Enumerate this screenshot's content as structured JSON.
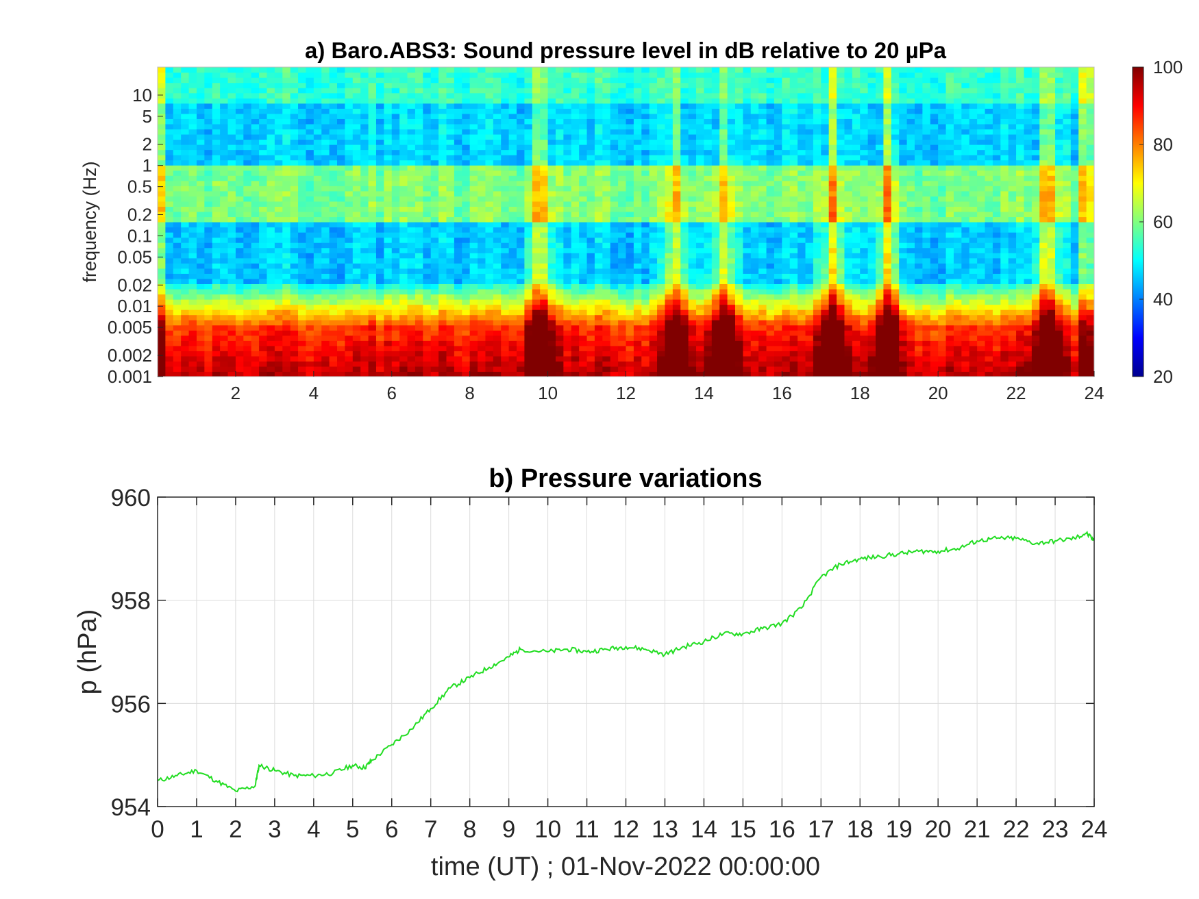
{
  "chart_data": [
    {
      "type": "heatmap",
      "title": "a) Baro.ABS3: Sound pressure level in dB relative to 20 µPa",
      "xlabel": "",
      "ylabel": "frequency (Hz)",
      "x_ticks": [
        "2",
        "4",
        "6",
        "8",
        "10",
        "12",
        "14",
        "16",
        "18",
        "20",
        "22",
        "24"
      ],
      "y_ticks": [
        "10",
        "5",
        "2",
        "1",
        "0.5",
        "0.2",
        "0.1",
        "0.05",
        "0.02",
        "0.01",
        "0.005",
        "0.002",
        "0.001"
      ],
      "xlim": [
        0,
        24
      ],
      "ylim": [
        0.001,
        25
      ],
      "yscale": "log",
      "colorbar": {
        "ticks": [
          "20",
          "40",
          "60",
          "80",
          "100"
        ],
        "range": [
          20,
          100
        ],
        "colormap": "jet"
      },
      "peak_events_hours": [
        9.8,
        13.3,
        14.5,
        17.3,
        18.7,
        22.8
      ]
    },
    {
      "type": "line",
      "title": "b) Pressure variations",
      "xlabel": "time (UT) ; 01-Nov-2022 00:00:00",
      "ylabel": "p (hPa)",
      "x_ticks": [
        "0",
        "1",
        "2",
        "3",
        "4",
        "5",
        "6",
        "7",
        "8",
        "9",
        "10",
        "11",
        "12",
        "13",
        "14",
        "15",
        "16",
        "17",
        "18",
        "19",
        "20",
        "21",
        "22",
        "23",
        "24"
      ],
      "y_ticks": [
        "954",
        "956",
        "958",
        "960"
      ],
      "xlim": [
        0,
        24
      ],
      "ylim": [
        954,
        960
      ],
      "grid": true,
      "line_color": "#22dd22",
      "series": [
        {
          "x": [
            0,
            0.5,
            1,
            1.5,
            2,
            2.5,
            2.6,
            3,
            3.5,
            4,
            4.5,
            5,
            5.3,
            5.5,
            6,
            6.5,
            7,
            7.5,
            8,
            8.5,
            9,
            9.3,
            10,
            10.5,
            11,
            11.5,
            12,
            12.5,
            13,
            13.5,
            14,
            14.5,
            15,
            15.5,
            16,
            16.5,
            17,
            17.5,
            18,
            18.5,
            19,
            19.5,
            20,
            20.5,
            21,
            21.5,
            22,
            22.5,
            23,
            23.5,
            23.8,
            24
          ],
          "y": [
            954.5,
            954.6,
            954.7,
            954.5,
            954.3,
            954.4,
            954.8,
            954.7,
            954.6,
            954.6,
            954.65,
            954.8,
            954.75,
            954.9,
            955.2,
            955.5,
            955.9,
            956.3,
            956.5,
            956.7,
            956.9,
            957.05,
            957.0,
            957.05,
            957.0,
            957.05,
            957.1,
            957.05,
            956.95,
            957.1,
            957.2,
            957.35,
            957.35,
            957.45,
            957.55,
            957.85,
            958.45,
            958.7,
            958.8,
            958.85,
            958.9,
            958.95,
            958.95,
            959.0,
            959.15,
            959.2,
            959.2,
            959.1,
            959.15,
            959.2,
            959.3,
            959.15
          ]
        }
      ]
    }
  ]
}
